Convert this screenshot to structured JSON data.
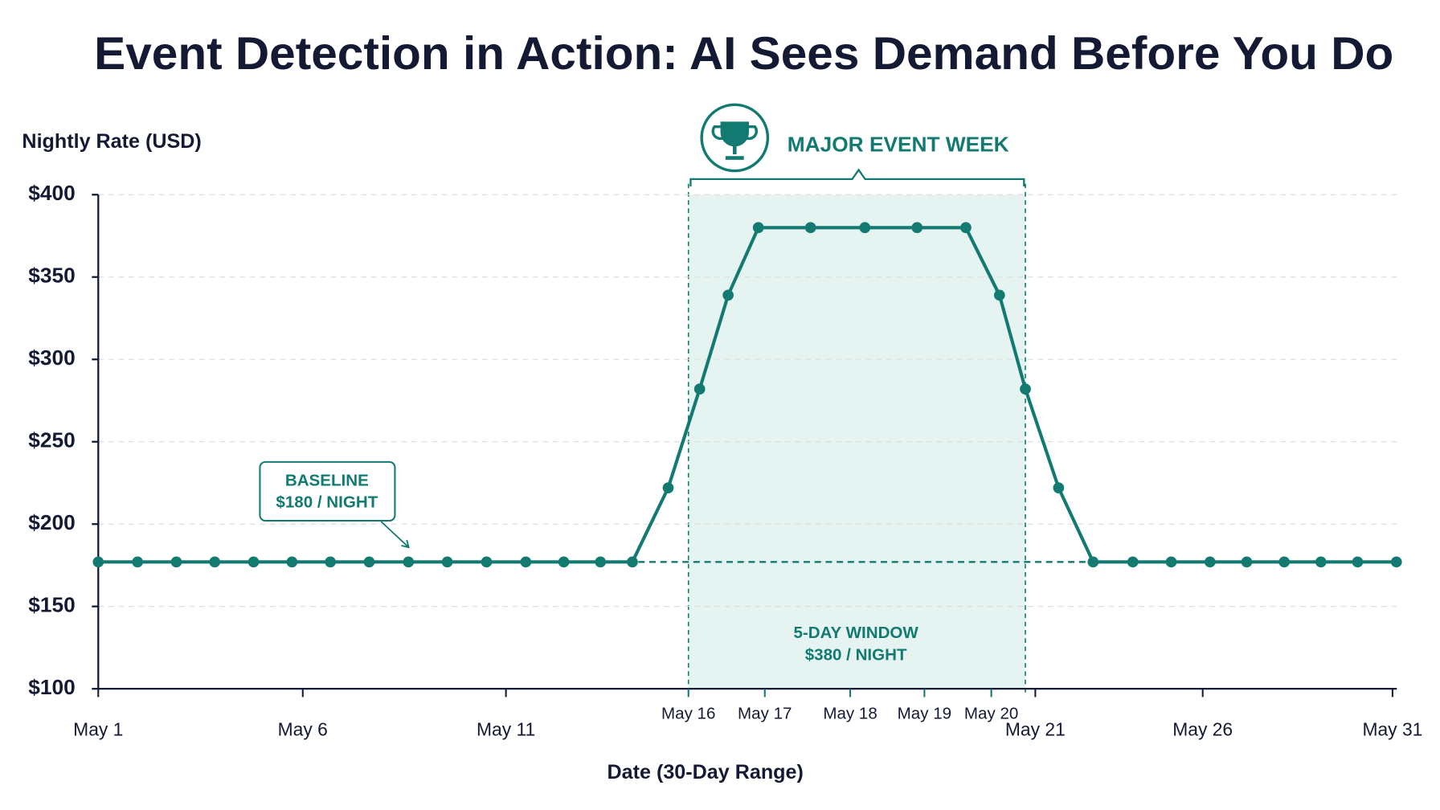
{
  "chart_data": {
    "type": "line",
    "title": "Event Detection in Action: AI Sees Demand Before You Do",
    "y_label": "Nightly Rate (USD)",
    "x_label": "Date (30-Day Range)",
    "x": [
      1.0,
      1.91,
      2.81,
      3.7,
      4.6,
      5.49,
      6.38,
      7.28,
      8.19,
      9.09,
      10.0,
      10.91,
      11.79,
      12.64,
      13.38,
      14.21,
      14.94,
      15.6,
      16.3,
      17.51,
      18.77,
      19.98,
      21.11,
      21.89,
      22.49,
      23.26,
      24.06,
      24.98,
      25.87,
      26.77,
      27.62,
      28.49,
      29.34,
      30.19,
      31.09
    ],
    "series": [
      {
        "color": "#137a72",
        "values": [
          177,
          177,
          177,
          177,
          177,
          177,
          177,
          177,
          177,
          177,
          177,
          177,
          177,
          177,
          177,
          222,
          282,
          339,
          380,
          380,
          380,
          380,
          380,
          339,
          282,
          222,
          177,
          177,
          177,
          177,
          177,
          177,
          177,
          177,
          177
        ]
      }
    ],
    "xlim": [
      1,
      31.1
    ],
    "xticks": [
      {
        "value": 1.0,
        "label": "May 1"
      },
      {
        "value": 5.74,
        "label": "May 6"
      },
      {
        "value": 10.45,
        "label": "May 11"
      },
      {
        "value": 14.68,
        "label": "May 16"
      },
      {
        "value": 16.45,
        "label": "May 17"
      },
      {
        "value": 18.43,
        "label": "May 18"
      },
      {
        "value": 20.15,
        "label": "May 19"
      },
      {
        "value": 21.7,
        "label": "May 20"
      },
      {
        "value": 22.72,
        "label": "May 21"
      },
      {
        "value": 26.6,
        "label": "May 26"
      },
      {
        "value": 31.0,
        "label": "May 31"
      }
    ],
    "ylim": [
      100,
      400
    ],
    "yticks": [
      {
        "value": 100,
        "label": "$100"
      },
      {
        "value": 150,
        "label": "$150"
      },
      {
        "value": 200,
        "label": "$200"
      },
      {
        "value": 250,
        "label": "$250"
      },
      {
        "value": 300,
        "label": "$300"
      },
      {
        "value": 350,
        "label": "$350"
      },
      {
        "value": 400,
        "label": "$400"
      }
    ],
    "grid": true,
    "highlight_range": [
      14.68,
      22.49
    ],
    "highlight_color": "#e5f4f1",
    "reference_line": 177,
    "annotations": {
      "event": "MAJOR EVENT WEEK",
      "baseline": [
        "BASELINE",
        "$180 / NIGHT"
      ],
      "window": [
        "5-DAY WINDOW",
        "$380 / NIGHT"
      ]
    }
  }
}
